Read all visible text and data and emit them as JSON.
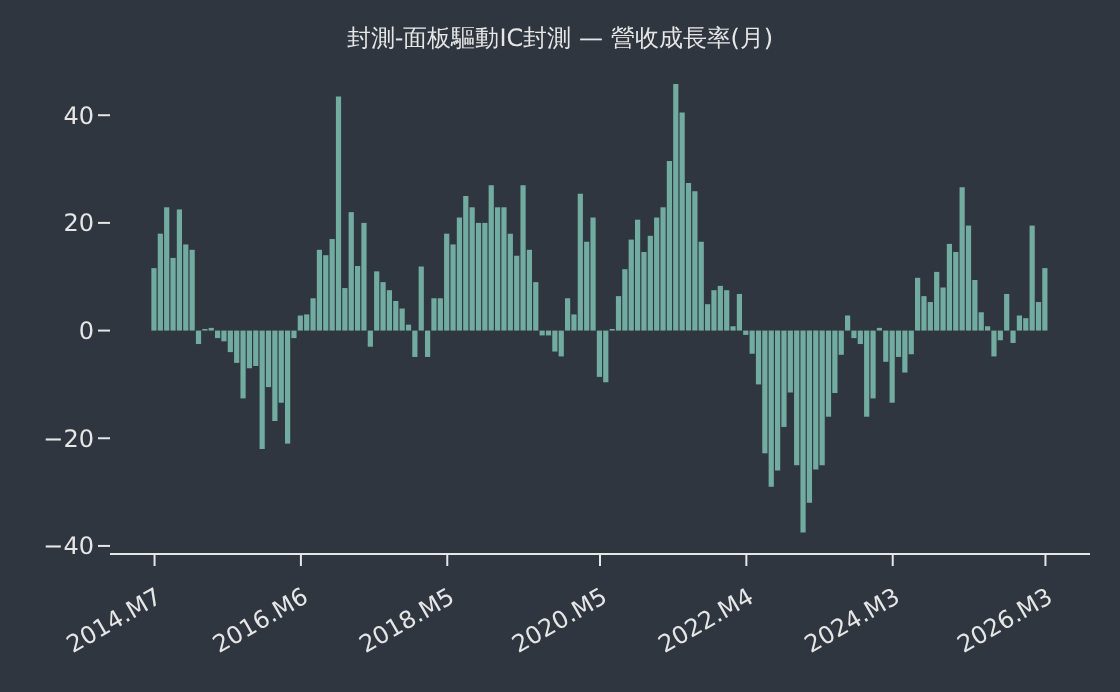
{
  "chart_data": {
    "type": "bar",
    "title": "封測-面板驅動IC封測 — 營收成長率(月)",
    "x": [
      "2014-07",
      "2014-08",
      "2014-09",
      "2014-10",
      "2014-11",
      "2014-12",
      "2015-01",
      "2015-02",
      "2015-03",
      "2015-04",
      "2015-05",
      "2015-06",
      "2015-07",
      "2015-08",
      "2015-09",
      "2015-10",
      "2015-11",
      "2015-12",
      "2016-01",
      "2016-02",
      "2016-03",
      "2016-04",
      "2016-05",
      "2016-06",
      "2016-07",
      "2016-08",
      "2016-09",
      "2016-10",
      "2016-11",
      "2016-12",
      "2017-01",
      "2017-02",
      "2017-03",
      "2017-04",
      "2017-05",
      "2017-06",
      "2017-07",
      "2017-08",
      "2017-09",
      "2017-10",
      "2017-11",
      "2017-12",
      "2018-01",
      "2018-02",
      "2018-03",
      "2018-04",
      "2018-05",
      "2018-06",
      "2018-07",
      "2018-08",
      "2018-09",
      "2018-10",
      "2018-11",
      "2018-12",
      "2019-01",
      "2019-02",
      "2019-03",
      "2019-04",
      "2019-05",
      "2019-06",
      "2019-07",
      "2019-08",
      "2019-09",
      "2019-10",
      "2019-11",
      "2019-12",
      "2020-01",
      "2020-02",
      "2020-03",
      "2020-04",
      "2020-05",
      "2020-06",
      "2020-07",
      "2020-08",
      "2020-09",
      "2020-10",
      "2020-11",
      "2020-12",
      "2021-01",
      "2021-02",
      "2021-03",
      "2021-04",
      "2021-05",
      "2021-06",
      "2021-07",
      "2021-08",
      "2021-09",
      "2021-10",
      "2021-11",
      "2021-12",
      "2022-01",
      "2022-02",
      "2022-03",
      "2022-04",
      "2022-05",
      "2022-06",
      "2022-07",
      "2022-08",
      "2022-09",
      "2022-10",
      "2022-11",
      "2022-12",
      "2023-01",
      "2023-02",
      "2023-03",
      "2023-04",
      "2023-05",
      "2023-06",
      "2023-07",
      "2023-08",
      "2023-09",
      "2023-10",
      "2023-11",
      "2023-12",
      "2024-01",
      "2024-02",
      "2024-03",
      "2024-04",
      "2024-05",
      "2024-06",
      "2024-07",
      "2024-08",
      "2024-09",
      "2024-10",
      "2024-11",
      "2024-12",
      "2025-01",
      "2025-02",
      "2025-03",
      "2025-04",
      "2025-05",
      "2025-06",
      "2025-07",
      "2025-08",
      "2025-09",
      "2025-10",
      "2025-11",
      "2025-12",
      "2026-01",
      "2026-02",
      "2026-03"
    ],
    "values": [
      11.6,
      18,
      22.9,
      13.5,
      22.5,
      16,
      15,
      -2.5,
      0.3,
      0.5,
      -1.4,
      -2,
      -4,
      -6,
      -12.6,
      -7,
      -6.6,
      -22,
      -10.5,
      -16.8,
      -13.4,
      -21,
      -1.4,
      2.8,
      3,
      6,
      15,
      14,
      17,
      43.5,
      7.9,
      22,
      12,
      20,
      -3,
      11,
      9,
      7.5,
      5.5,
      4.1,
      1.1,
      -4.9,
      11.9,
      -4.9,
      6,
      6,
      18,
      16,
      21,
      25,
      22.9,
      20,
      20,
      27,
      22.9,
      22.9,
      18,
      13.9,
      27,
      15,
      9,
      -0.9,
      -0.9,
      -3.9,
      -4.8,
      6,
      3,
      25.4,
      16.5,
      21,
      -8.6,
      -9.6,
      0.3,
      6.4,
      11.4,
      16.9,
      20.6,
      14.6,
      17.6,
      21,
      22.9,
      31.5,
      45.8,
      40.5,
      27.4,
      25.9,
      16.5,
      4.9,
      7.5,
      8.3,
      7.5,
      0.8,
      6.8,
      -0.8,
      -4.3,
      -10,
      -22.8,
      -29,
      -26,
      -17.9,
      -11.5,
      -25,
      -37.5,
      -32,
      -25.8,
      -25,
      -16,
      -11.6,
      -4.5,
      2.8,
      -1.4,
      -2.5,
      -16,
      -12.6,
      0.5,
      -5.8,
      -13.4,
      -4.9,
      -7.8,
      -4.4,
      9.8,
      6.4,
      5.3,
      10.9,
      8,
      16.1,
      14.6,
      26.6,
      19.5,
      9.4,
      3.4,
      0.8,
      -4.8,
      -1.8,
      6.8,
      -2.3,
      2.8,
      2.3,
      19.5,
      5.3,
      11.6
    ],
    "color": "#72aca0",
    "xlim": [
      "2013-12",
      "2026-10"
    ],
    "xticks": [
      {
        "value": "2014-07",
        "label": "2014.M7"
      },
      {
        "value": "2016-06",
        "label": "2016.M6"
      },
      {
        "value": "2018-05",
        "label": "2018.M5"
      },
      {
        "value": "2020-05",
        "label": "2020.M5"
      },
      {
        "value": "2022-04",
        "label": "2022.M4"
      },
      {
        "value": "2024-03",
        "label": "2024.M3"
      },
      {
        "value": "2026-03",
        "label": "2026.M3"
      }
    ],
    "ylim": [
      -41.5,
      45.8
    ],
    "yticks": [
      {
        "value": -40,
        "label": "−40"
      },
      {
        "value": -20,
        "label": "−20"
      },
      0,
      20,
      40
    ],
    "grid": false,
    "legend": false
  }
}
